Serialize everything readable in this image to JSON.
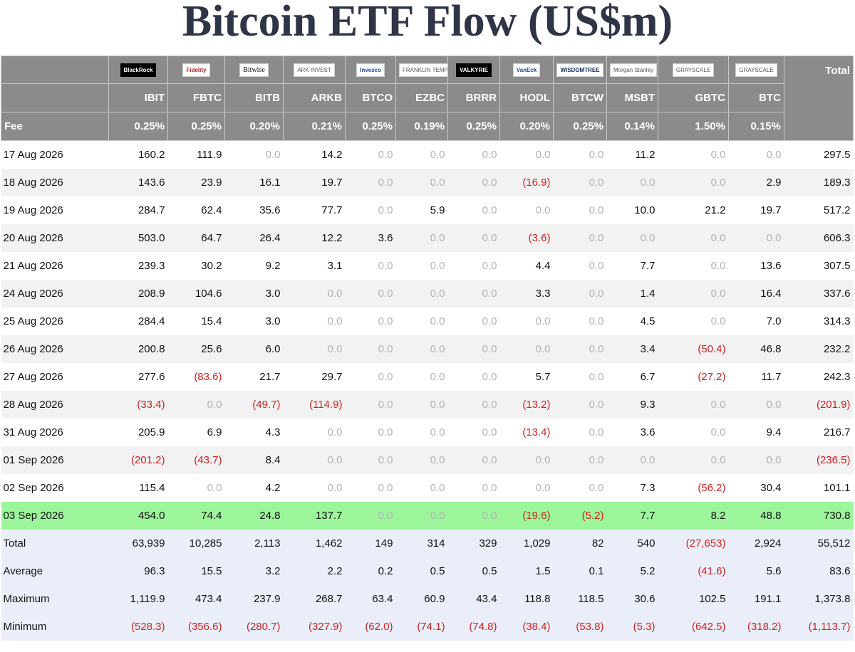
{
  "title": "Bitcoin ETF Flow (US$m)",
  "header": {
    "total_label": "Total",
    "fee_label": "Fee",
    "logos": [
      "BlackRock",
      "Fidelity",
      "Bitwise",
      "ARK INVEST",
      "Invesco",
      "FRANKLIN TEMPLETON",
      "VALKYRIE",
      "VanEck",
      "WISDOMTREE",
      "Morgan Stanley",
      "GRAYSCALE",
      "GRAYSCALE"
    ],
    "tickers": [
      "IBIT",
      "FBTC",
      "BITB",
      "ARKB",
      "BTCO",
      "EZBC",
      "BRRR",
      "HODL",
      "BTCW",
      "MSBT",
      "GBTC",
      "BTC"
    ],
    "fees": [
      "0.25%",
      "0.25%",
      "0.20%",
      "0.21%",
      "0.25%",
      "0.19%",
      "0.25%",
      "0.20%",
      "0.25%",
      "0.14%",
      "1.50%",
      "0.15%"
    ]
  },
  "rows": [
    {
      "date": "17 Aug 2026",
      "values": [
        "160.2",
        "111.9",
        "0.0",
        "14.2",
        "0.0",
        "0.0",
        "0.0",
        "0.0",
        "0.0",
        "11.2",
        "0.0",
        "0.0"
      ],
      "total": "297.5"
    },
    {
      "date": "18 Aug 2026",
      "values": [
        "143.6",
        "23.9",
        "16.1",
        "19.7",
        "0.0",
        "0.0",
        "0.0",
        "(16.9)",
        "0.0",
        "0.0",
        "0.0",
        "2.9"
      ],
      "total": "189.3"
    },
    {
      "date": "19 Aug 2026",
      "values": [
        "284.7",
        "62.4",
        "35.6",
        "77.7",
        "0.0",
        "5.9",
        "0.0",
        "0.0",
        "0.0",
        "10.0",
        "21.2",
        "19.7"
      ],
      "total": "517.2"
    },
    {
      "date": "20 Aug 2026",
      "values": [
        "503.0",
        "64.7",
        "26.4",
        "12.2",
        "3.6",
        "0.0",
        "0.0",
        "(3.6)",
        "0.0",
        "0.0",
        "0.0",
        "0.0"
      ],
      "total": "606.3"
    },
    {
      "date": "21 Aug 2026",
      "values": [
        "239.3",
        "30.2",
        "9.2",
        "3.1",
        "0.0",
        "0.0",
        "0.0",
        "4.4",
        "0.0",
        "7.7",
        "0.0",
        "13.6"
      ],
      "total": "307.5"
    },
    {
      "date": "24 Aug 2026",
      "values": [
        "208.9",
        "104.6",
        "3.0",
        "0.0",
        "0.0",
        "0.0",
        "0.0",
        "3.3",
        "0.0",
        "1.4",
        "0.0",
        "16.4"
      ],
      "total": "337.6"
    },
    {
      "date": "25 Aug 2026",
      "values": [
        "284.4",
        "15.4",
        "3.0",
        "0.0",
        "0.0",
        "0.0",
        "0.0",
        "0.0",
        "0.0",
        "4.5",
        "0.0",
        "7.0"
      ],
      "total": "314.3"
    },
    {
      "date": "26 Aug 2026",
      "values": [
        "200.8",
        "25.6",
        "6.0",
        "0.0",
        "0.0",
        "0.0",
        "0.0",
        "0.0",
        "0.0",
        "3.4",
        "(50.4)",
        "46.8"
      ],
      "total": "232.2"
    },
    {
      "date": "27 Aug 2026",
      "values": [
        "277.6",
        "(83.6)",
        "21.7",
        "29.7",
        "0.0",
        "0.0",
        "0.0",
        "5.7",
        "0.0",
        "6.7",
        "(27.2)",
        "11.7"
      ],
      "total": "242.3"
    },
    {
      "date": "28 Aug 2026",
      "values": [
        "(33.4)",
        "0.0",
        "(49.7)",
        "(114.9)",
        "0.0",
        "0.0",
        "0.0",
        "(13.2)",
        "0.0",
        "9.3",
        "0.0",
        "0.0"
      ],
      "total": "(201.9)"
    },
    {
      "date": "31 Aug 2026",
      "values": [
        "205.9",
        "6.9",
        "4.3",
        "0.0",
        "0.0",
        "0.0",
        "0.0",
        "(13.4)",
        "0.0",
        "3.6",
        "0.0",
        "9.4"
      ],
      "total": "216.7"
    },
    {
      "date": "01 Sep 2026",
      "values": [
        "(201.2)",
        "(43.7)",
        "8.4",
        "0.0",
        "0.0",
        "0.0",
        "0.0",
        "0.0",
        "0.0",
        "0.0",
        "0.0",
        "0.0"
      ],
      "total": "(236.5)"
    },
    {
      "date": "02 Sep 2026",
      "values": [
        "115.4",
        "0.0",
        "4.2",
        "0.0",
        "0.0",
        "0.0",
        "0.0",
        "0.0",
        "0.0",
        "7.3",
        "(56.2)",
        "30.4"
      ],
      "total": "101.1"
    },
    {
      "date": "03 Sep 2026",
      "values": [
        "454.0",
        "74.4",
        "24.8",
        "137.7",
        "0.0",
        "0.0",
        "0.0",
        "(19.6)",
        "(5.2)",
        "7.7",
        "8.2",
        "48.8"
      ],
      "total": "730.8",
      "highlight": true
    }
  ],
  "summary": [
    {
      "label": "Total",
      "values": [
        "63,939",
        "10,285",
        "2,113",
        "1,462",
        "149",
        "314",
        "329",
        "1,029",
        "82",
        "540",
        "(27,653)",
        "2,924"
      ],
      "total": "55,512"
    },
    {
      "label": "Average",
      "values": [
        "96.3",
        "15.5",
        "3.2",
        "2.2",
        "0.2",
        "0.5",
        "0.5",
        "1.5",
        "0.1",
        "5.2",
        "(41.6)",
        "5.6"
      ],
      "total": "83.6"
    },
    {
      "label": "Maximum",
      "values": [
        "1,119.9",
        "473.4",
        "237.9",
        "268.7",
        "63.4",
        "60.9",
        "43.4",
        "118.8",
        "118.5",
        "30.6",
        "102.5",
        "191.1"
      ],
      "total": "1,373.8"
    },
    {
      "label": "Minimum",
      "values": [
        "(528.3)",
        "(356.6)",
        "(280.7)",
        "(327.9)",
        "(62.0)",
        "(74.1)",
        "(74.8)",
        "(38.4)",
        "(53.8)",
        "(5.3)",
        "(642.5)",
        "(318.2)"
      ],
      "total": "(1,113.7)"
    }
  ],
  "colors": {
    "header_bg": "#8b8b8b",
    "highlight_row": "#9cf59a",
    "summary_bg": "#eaeef8",
    "negative": "#d02020",
    "zero": "#b3b3b3",
    "title": "#2f3447"
  }
}
